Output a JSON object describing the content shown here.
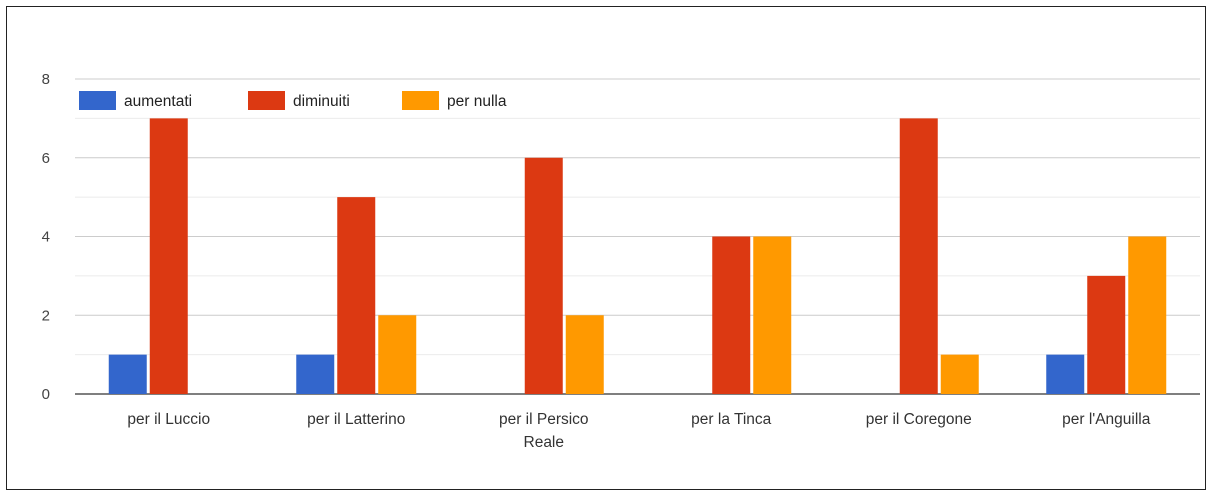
{
  "chart_data": {
    "type": "bar",
    "categories": [
      [
        "per il Luccio"
      ],
      [
        "per il Latterino"
      ],
      [
        "per il Persico",
        "Reale"
      ],
      [
        "per la Tinca"
      ],
      [
        "per il Coregone"
      ],
      [
        "per l'Anguilla"
      ]
    ],
    "series": [
      {
        "name": "aumentati",
        "color": "#3366cc",
        "values": [
          1,
          1,
          0,
          0,
          0,
          1
        ]
      },
      {
        "name": "diminuiti",
        "color": "#dc3912",
        "values": [
          7,
          5,
          6,
          4,
          7,
          3
        ]
      },
      {
        "name": "per nulla",
        "color": "#ff9900",
        "values": [
          0,
          2,
          2,
          4,
          1,
          4
        ]
      }
    ],
    "title": "",
    "xlabel": "",
    "ylabel": "",
    "ylim": [
      0,
      8
    ],
    "yticks": [
      0,
      2,
      4,
      6,
      8
    ],
    "grid": true,
    "legend_position": "top-left"
  }
}
